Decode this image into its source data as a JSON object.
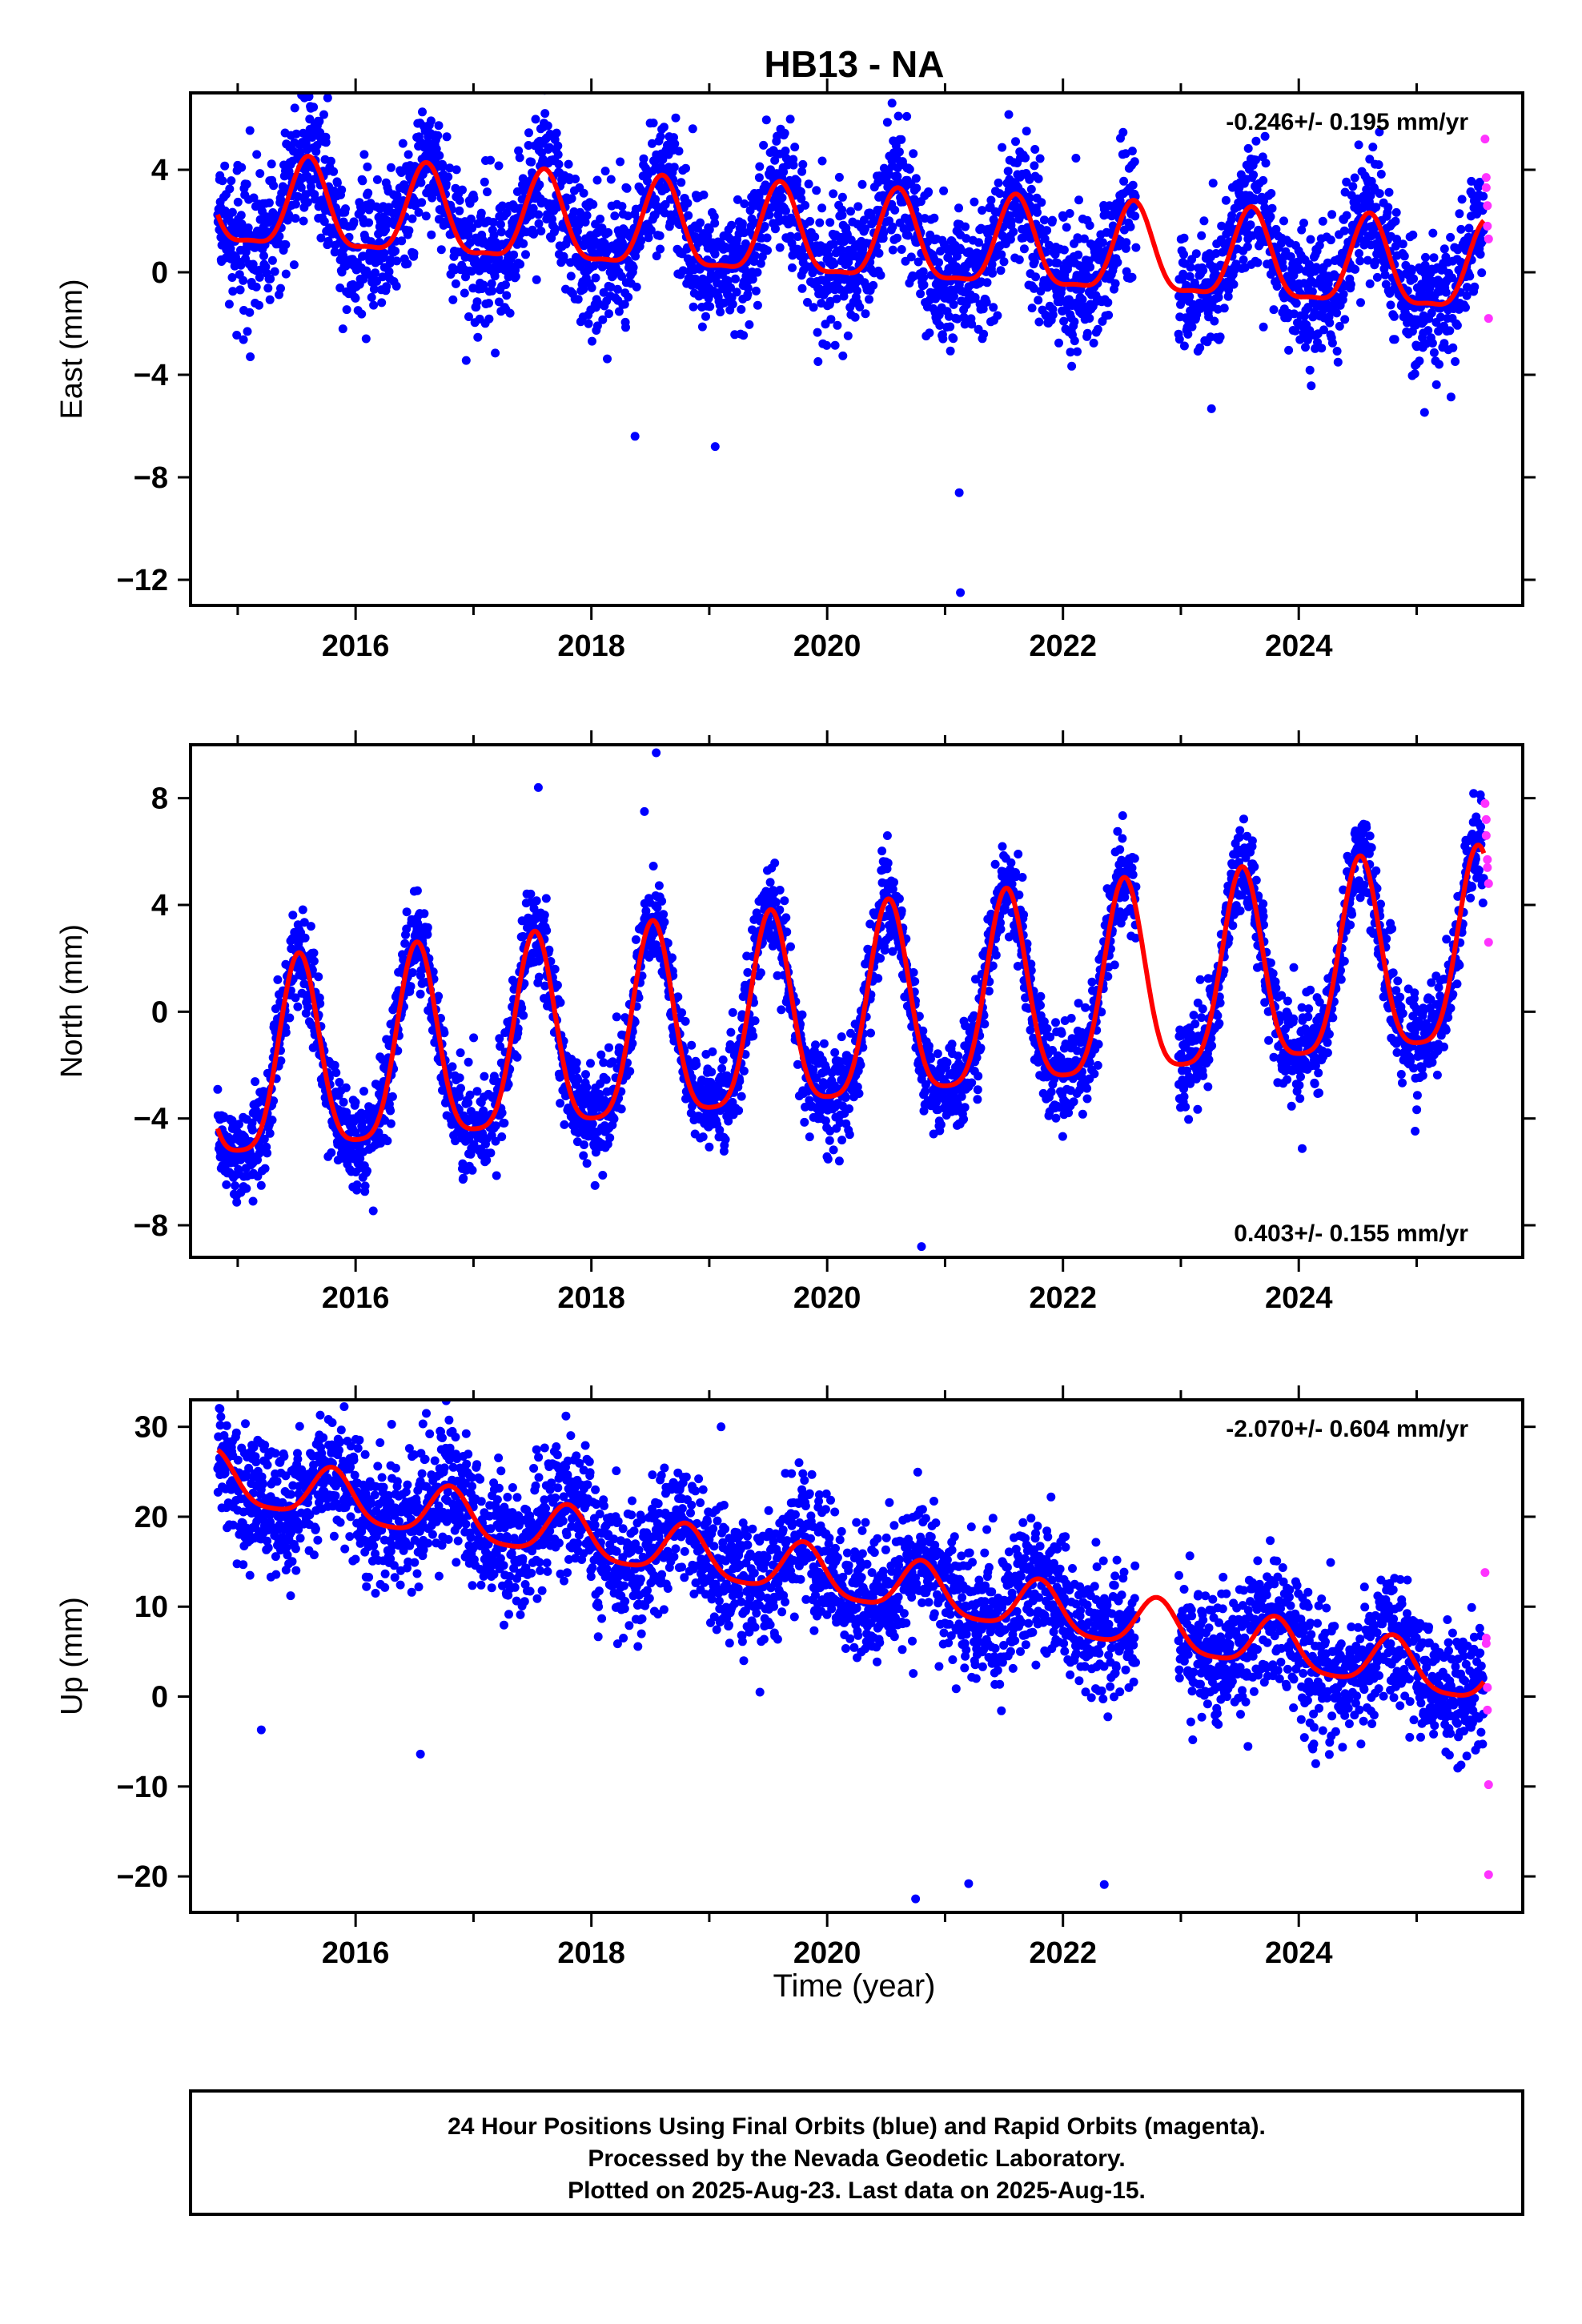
{
  "title": "HB13 - NA",
  "xlabel": "Time (year)",
  "colors": {
    "final": "#0000ff",
    "rapid": "#ff33ff",
    "model": "#ff0000",
    "frame": "#000000"
  },
  "footer": {
    "line1": "24 Hour Positions Using Final Orbits (blue) and Rapid Orbits (magenta).",
    "line2": "Processed by the Nevada Geodetic Laboratory.",
    "line3": "Plotted on 2025-Aug-23. Last data on 2025-Aug-15."
  },
  "chart_data": [
    {
      "type": "scatter",
      "ylabel": "East (mm)",
      "rate": "-0.246+/- 0.195 mm/yr",
      "rate_position": "top-right",
      "xlim": [
        2014.6,
        2025.9
      ],
      "ylim": [
        -13,
        7
      ],
      "xticks": [
        2016,
        2018,
        2020,
        2022,
        2024
      ],
      "yticks": [
        4,
        0,
        -4,
        -8,
        -12
      ],
      "ytick_labels": [
        "4",
        "0",
        "−4",
        "−8",
        "−12"
      ],
      "data_span": [
        2014.83,
        2025.57
      ],
      "series": [
        {
          "role": "final",
          "color": "#0000ff",
          "trend": -0.246,
          "offset": 1.2,
          "annual_amp": 1.7,
          "annual_phase_peak": 0.6,
          "semiannual_amp": 0.5,
          "noise_sd": 1.3
        },
        {
          "role": "model",
          "color": "#ff0000"
        },
        {
          "role": "rapid",
          "color": "#ff33ff",
          "points": [
            [
              2025.58,
              5.2
            ],
            [
              2025.59,
              3.7
            ],
            [
              2025.59,
              3.3
            ],
            [
              2025.6,
              2.6
            ],
            [
              2025.6,
              1.8
            ],
            [
              2025.61,
              1.3
            ],
            [
              2025.61,
              -1.8
            ]
          ]
        }
      ],
      "outliers": [
        [
          2021.12,
          -8.6
        ],
        [
          2021.13,
          -12.5
        ],
        [
          2018.37,
          -6.4
        ],
        [
          2019.05,
          -6.8
        ],
        [
          2015.62,
          6.4
        ],
        [
          2020.55,
          6.6
        ]
      ]
    },
    {
      "type": "scatter",
      "ylabel": "North (mm)",
      "rate": "0.403+/- 0.155 mm/yr",
      "rate_position": "bottom-right",
      "xlim": [
        2014.6,
        2025.9
      ],
      "ylim": [
        -9.2,
        10
      ],
      "xticks": [
        2016,
        2018,
        2020,
        2022,
        2024
      ],
      "yticks": [
        8,
        4,
        0,
        -4,
        -8
      ],
      "ytick_labels": [
        "8",
        "4",
        "0",
        "−4",
        "−8"
      ],
      "data_span": [
        2014.83,
        2025.57
      ],
      "series": [
        {
          "role": "final",
          "color": "#0000ff",
          "trend": 0.403,
          "offset": -0.3,
          "annual_amp": 3.6,
          "annual_phase_peak": 0.52,
          "semiannual_amp": 0.8,
          "noise_sd": 0.9
        },
        {
          "role": "model",
          "color": "#ff0000"
        },
        {
          "role": "rapid",
          "color": "#ff33ff",
          "points": [
            [
              2025.58,
              7.8
            ],
            [
              2025.59,
              7.2
            ],
            [
              2025.59,
              6.6
            ],
            [
              2025.6,
              5.7
            ],
            [
              2025.6,
              5.4
            ],
            [
              2025.61,
              4.8
            ],
            [
              2025.61,
              2.6
            ]
          ]
        }
      ],
      "outliers": [
        [
          2020.8,
          -8.8
        ],
        [
          2015.13,
          -7.1
        ],
        [
          2018.55,
          9.7
        ],
        [
          2017.55,
          8.4
        ],
        [
          2018.45,
          7.5
        ]
      ]
    },
    {
      "type": "scatter",
      "ylabel": "Up (mm)",
      "rate": "-2.070+/- 0.604 mm/yr",
      "rate_position": "top-right",
      "xlim": [
        2014.6,
        2025.9
      ],
      "ylim": [
        -24,
        33
      ],
      "xticks": [
        2016,
        2018,
        2020,
        2022,
        2024
      ],
      "yticks": [
        30,
        20,
        10,
        0,
        -10,
        -20
      ],
      "ytick_labels": [
        "30",
        "20",
        "10",
        "0",
        "−10",
        "−20"
      ],
      "data_span": [
        2014.83,
        2025.57
      ],
      "series": [
        {
          "role": "final",
          "color": "#0000ff",
          "trend": -2.07,
          "offset": 13.0,
          "annual_amp": 2.8,
          "annual_phase_peak": 0.8,
          "semiannual_amp": 0.6,
          "noise_sd": 3.6
        },
        {
          "role": "model",
          "color": "#ff0000"
        },
        {
          "role": "rapid",
          "color": "#ff33ff",
          "points": [
            [
              2025.58,
              13.8
            ],
            [
              2025.59,
              6.5
            ],
            [
              2025.59,
              5.9
            ],
            [
              2025.6,
              1.0
            ],
            [
              2025.6,
              -1.5
            ],
            [
              2025.61,
              -9.8
            ],
            [
              2025.61,
              -19.8
            ]
          ]
        }
      ],
      "outliers": [
        [
          2014.85,
          32.0
        ],
        [
          2016.6,
          31.5
        ],
        [
          2015.7,
          31.3
        ],
        [
          2019.1,
          30.0
        ],
        [
          2020.75,
          -22.5
        ],
        [
          2022.35,
          -20.9
        ],
        [
          2021.2,
          -20.8
        ],
        [
          2015.2,
          -3.7
        ],
        [
          2016.55,
          -6.4
        ]
      ]
    }
  ]
}
